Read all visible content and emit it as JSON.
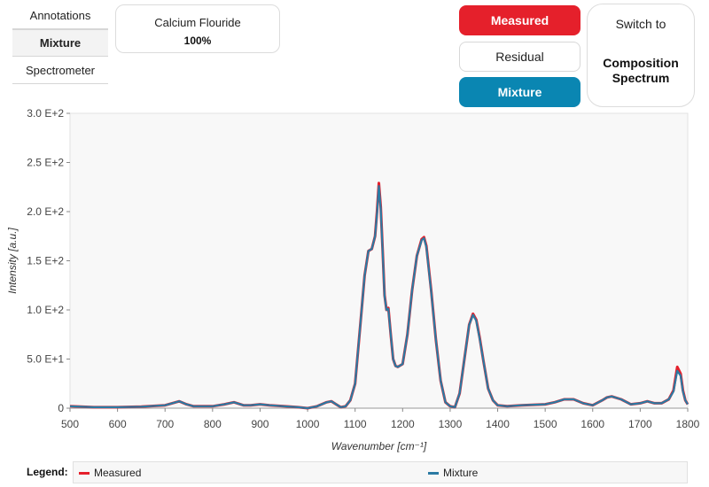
{
  "side_tabs": [
    "Annotations",
    "Mixture",
    "Spectrometer"
  ],
  "component": {
    "name": "Calcium Flouride",
    "percent": "100%"
  },
  "toggles": {
    "measured": "Measured",
    "residual": "Residual",
    "mixture": "Mixture"
  },
  "switch_button": {
    "top": "Switch to",
    "bottom_line1": "Composition",
    "bottom_line2": "Spectrum"
  },
  "legend": {
    "title": "Legend:",
    "items": [
      "Measured",
      "Mixture"
    ]
  },
  "colors": {
    "measured": "#e5202b",
    "mixture": "#2b7aa3",
    "mixture_button": "#0a86b2"
  },
  "chart_data": {
    "type": "line",
    "xlabel": "Wavenumber [cm⁻¹]",
    "ylabel": "Intensity [a.u.]",
    "xlim": [
      500,
      1800
    ],
    "ylim": [
      0,
      300
    ],
    "x_ticks": [
      500,
      600,
      700,
      800,
      900,
      1000,
      1100,
      1200,
      1300,
      1400,
      1500,
      1600,
      1700,
      1800
    ],
    "y_ticks": [
      0,
      50,
      100,
      150,
      200,
      250,
      300
    ],
    "y_tick_labels": [
      "0",
      "5.0 E+1",
      "1.0 E+2",
      "1.5 E+2",
      "2.0 E+2",
      "2.5 E+2",
      "3.0 E+2"
    ],
    "grid": false,
    "series": [
      {
        "name": "Measured",
        "x": [
          500,
          550,
          600,
          650,
          700,
          715,
          730,
          745,
          760,
          800,
          825,
          845,
          865,
          880,
          900,
          920,
          950,
          980,
          1000,
          1020,
          1040,
          1050,
          1060,
          1070,
          1080,
          1090,
          1100,
          1110,
          1120,
          1128,
          1135,
          1142,
          1146,
          1150,
          1154,
          1158,
          1162,
          1166,
          1170,
          1175,
          1180,
          1185,
          1190,
          1200,
          1210,
          1220,
          1230,
          1240,
          1245,
          1250,
          1260,
          1270,
          1280,
          1290,
          1300,
          1310,
          1320,
          1330,
          1340,
          1348,
          1355,
          1362,
          1370,
          1380,
          1390,
          1400,
          1420,
          1450,
          1500,
          1520,
          1540,
          1560,
          1580,
          1600,
          1620,
          1630,
          1640,
          1660,
          1680,
          1700,
          1715,
          1730,
          1745,
          1760,
          1770,
          1778,
          1785,
          1790,
          1795,
          1800
        ],
        "y": [
          2,
          1,
          1,
          1.5,
          3,
          5,
          7,
          4,
          2,
          2,
          4,
          6,
          3,
          3,
          4,
          3,
          2,
          1,
          0,
          2,
          6,
          7,
          4,
          1,
          2,
          8,
          25,
          80,
          135,
          160,
          162,
          175,
          200,
          229,
          205,
          160,
          115,
          100,
          102,
          75,
          50,
          43,
          42,
          45,
          75,
          120,
          155,
          172,
          174,
          165,
          120,
          70,
          28,
          6,
          2,
          1,
          15,
          50,
          85,
          96,
          90,
          72,
          48,
          20,
          8,
          3,
          2,
          3,
          4,
          6,
          9,
          9,
          5,
          3,
          8,
          11,
          12,
          9,
          4,
          5,
          7,
          5,
          5,
          9,
          18,
          42,
          35,
          18,
          8,
          4
        ]
      },
      {
        "name": "Mixture",
        "x": [
          500,
          550,
          600,
          650,
          700,
          715,
          730,
          745,
          760,
          800,
          825,
          845,
          865,
          880,
          900,
          920,
          950,
          980,
          1000,
          1020,
          1040,
          1050,
          1060,
          1070,
          1080,
          1090,
          1100,
          1110,
          1120,
          1128,
          1135,
          1142,
          1146,
          1150,
          1154,
          1158,
          1162,
          1166,
          1170,
          1175,
          1180,
          1185,
          1190,
          1200,
          1210,
          1220,
          1230,
          1240,
          1245,
          1250,
          1260,
          1270,
          1280,
          1290,
          1300,
          1310,
          1320,
          1330,
          1340,
          1348,
          1355,
          1362,
          1370,
          1380,
          1390,
          1400,
          1420,
          1450,
          1500,
          1520,
          1540,
          1560,
          1580,
          1600,
          1620,
          1630,
          1640,
          1660,
          1680,
          1700,
          1715,
          1730,
          1745,
          1760,
          1770,
          1778,
          1785,
          1790,
          1795,
          1800
        ],
        "y": [
          2,
          1,
          1,
          1.5,
          3,
          5,
          7,
          4,
          2,
          2,
          4,
          6,
          3,
          3,
          4,
          3,
          2,
          1,
          0,
          2,
          6,
          7,
          4,
          1,
          2,
          8,
          25,
          80,
          135,
          160,
          162,
          175,
          198,
          226,
          203,
          159,
          114,
          100,
          101,
          75,
          50,
          43,
          42,
          45,
          75,
          120,
          155,
          171,
          173,
          164,
          119,
          70,
          28,
          6,
          2,
          1,
          15,
          50,
          85,
          95,
          89,
          71,
          48,
          20,
          8,
          3,
          2,
          3,
          4,
          6,
          9,
          9,
          5,
          3,
          8,
          11,
          12,
          9,
          4,
          5,
          7,
          5,
          5,
          9,
          17,
          38,
          33,
          17,
          8,
          4
        ]
      }
    ]
  }
}
